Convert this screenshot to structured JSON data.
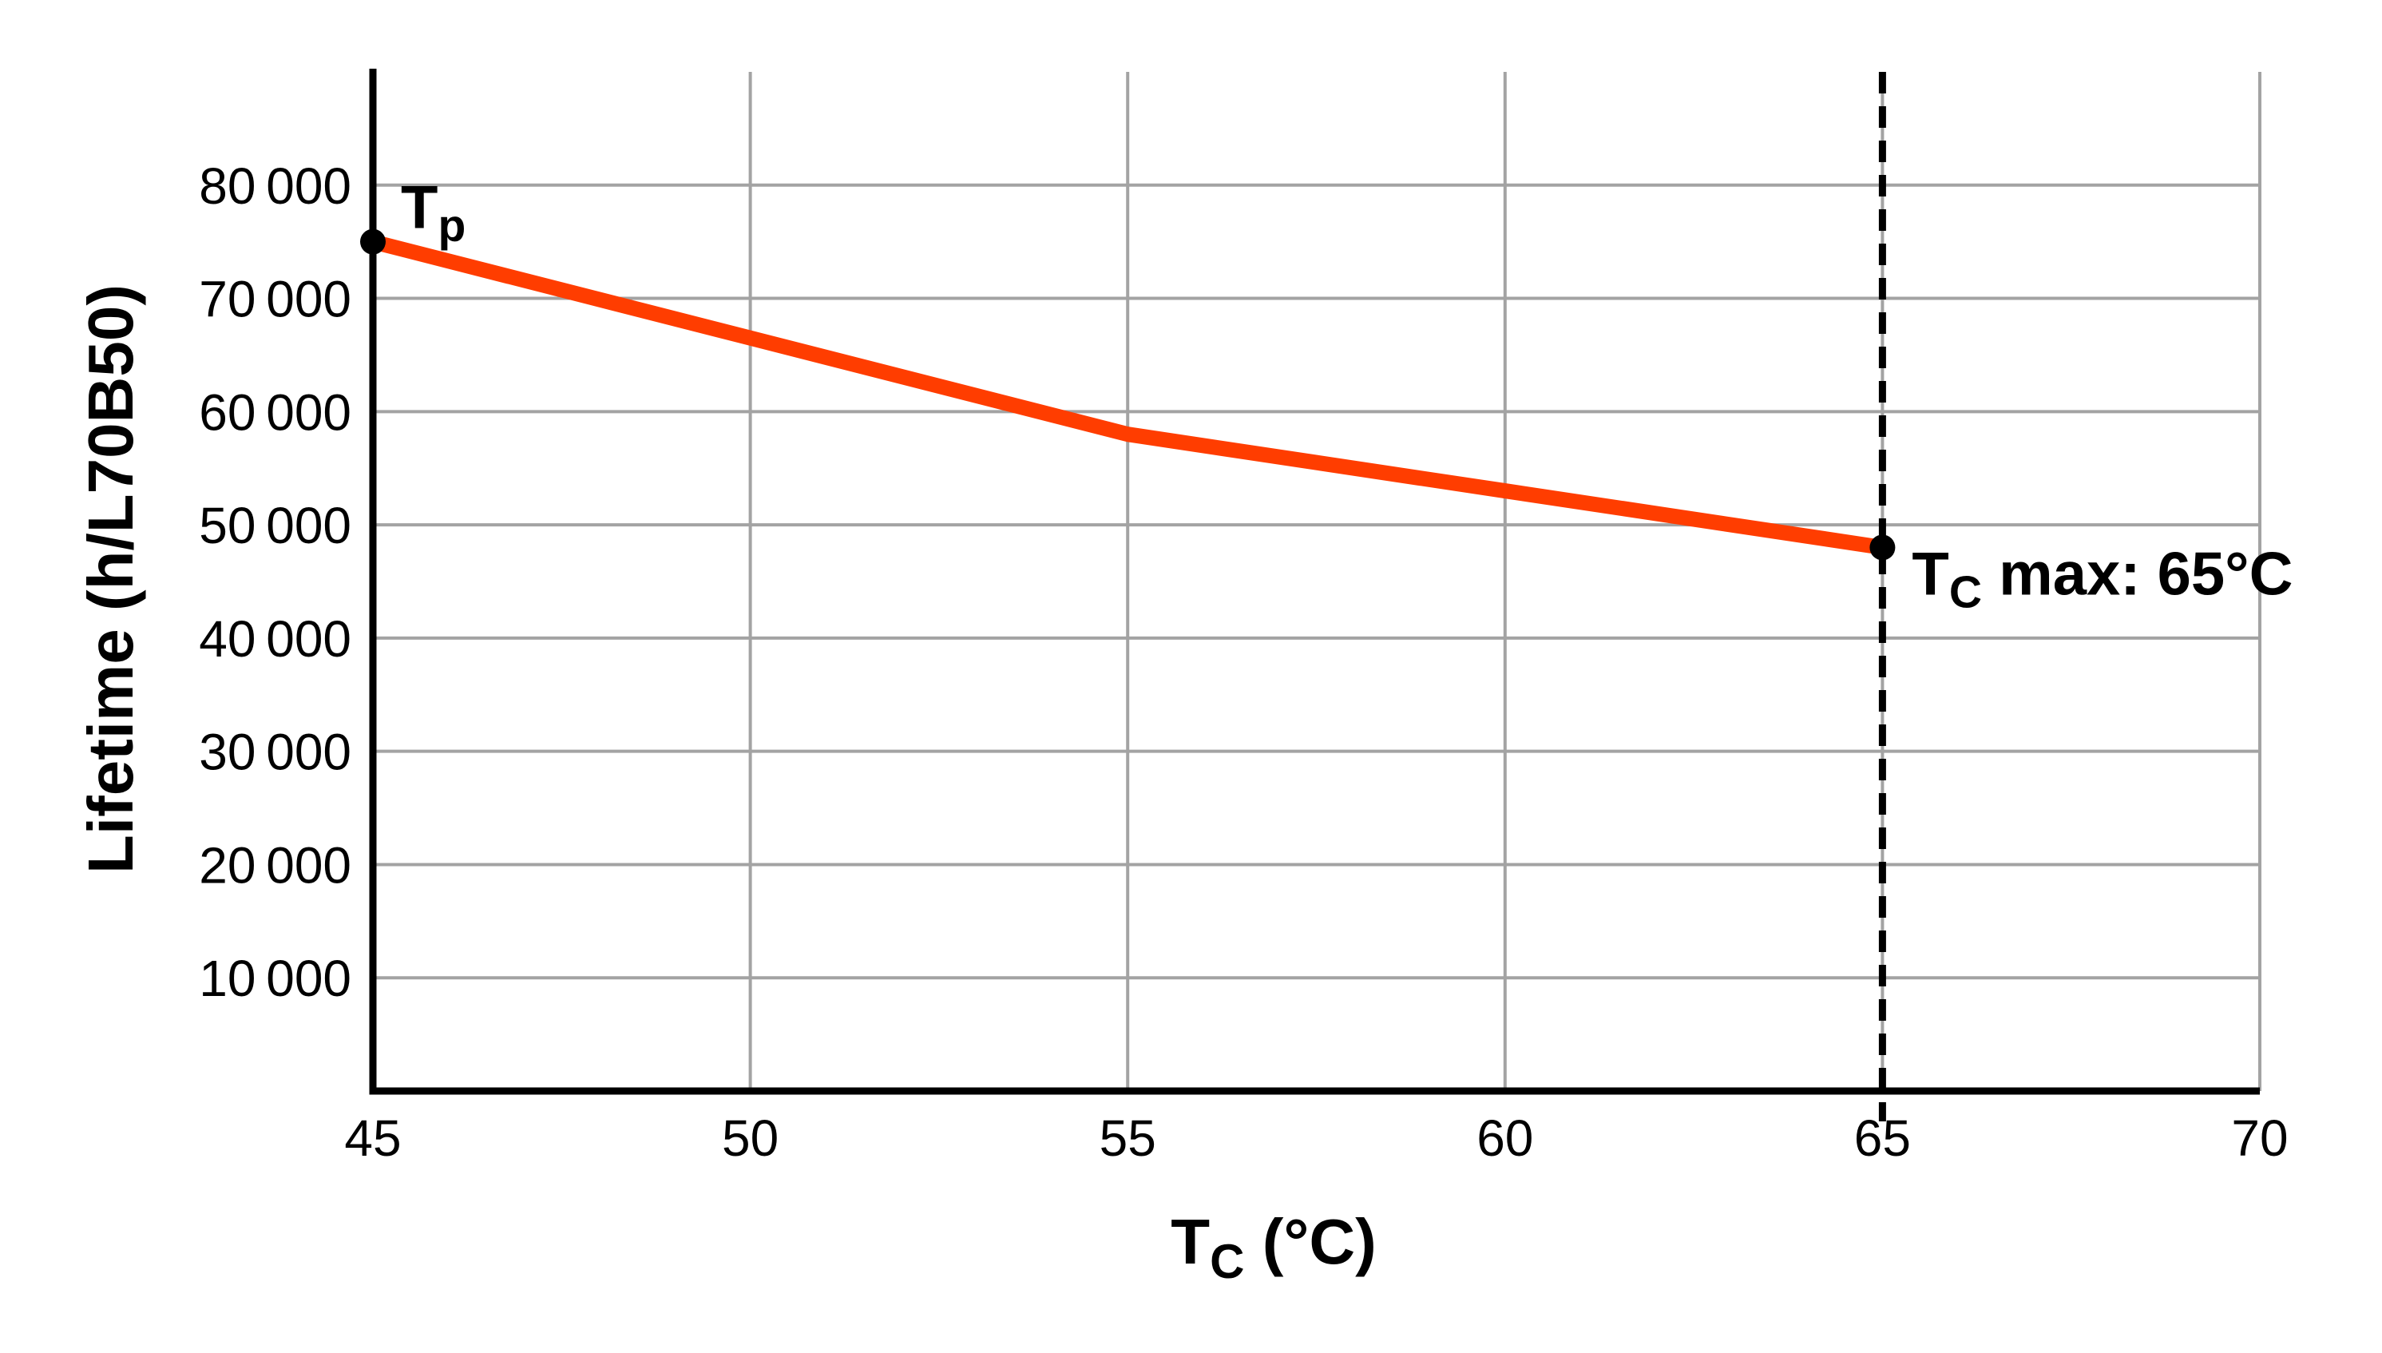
{
  "figure": {
    "background": "#ffffff"
  },
  "chart_data": {
    "type": "line",
    "title": "",
    "xlabel": {
      "prefix": "T",
      "sub": "C",
      "rest": " (°C)"
    },
    "ylabel": "Lifetime (h/L70B50)",
    "x": [
      45,
      50,
      55,
      60,
      65
    ],
    "series": [
      {
        "name": "lifetime",
        "values": [
          75000,
          66500,
          58000,
          53000,
          48000
        ],
        "color": "#FF3D00"
      }
    ],
    "xlim": [
      45,
      70
    ],
    "ylim": [
      0,
      90000
    ],
    "x_ticks": [
      45,
      50,
      55,
      60,
      65,
      70
    ],
    "x_tick_labels": [
      "45",
      "50",
      "55",
      "60",
      "65",
      "70"
    ],
    "y_ticks": [
      10000,
      20000,
      30000,
      40000,
      50000,
      60000,
      70000,
      80000
    ],
    "y_tick_labels": [
      "10 000",
      "20 000",
      "30 000",
      "40 000",
      "50 000",
      "60 000",
      "70 000",
      "80 000"
    ],
    "grid": true,
    "legend": "none",
    "marker_line": {
      "x": 65,
      "style": "dashed",
      "color": "#000000"
    },
    "annotations": [
      {
        "id": "start",
        "x": 45,
        "y": 75000,
        "prefix": "T",
        "sub": "p",
        "rest": ""
      },
      {
        "id": "end",
        "x": 65,
        "y": 48000,
        "prefix": "T",
        "sub": "C",
        "rest": " max: 65°C"
      }
    ],
    "colors": {
      "line": "#FF3D00",
      "grid": "#A3A3A3",
      "axis": "#000000",
      "text": "#000000"
    }
  }
}
